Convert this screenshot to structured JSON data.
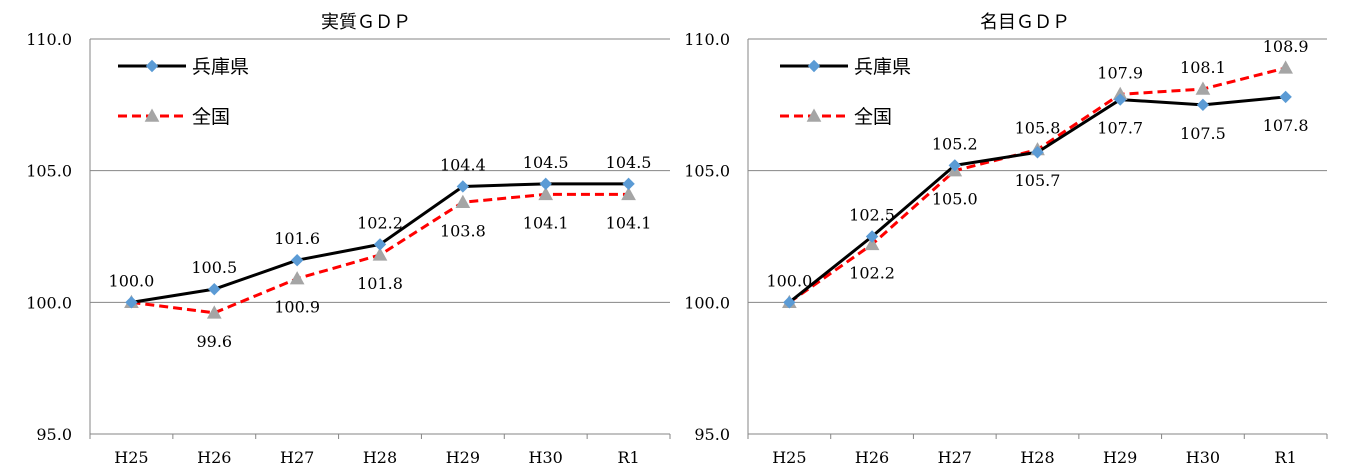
{
  "chart_data": [
    {
      "type": "line",
      "title": "実質ＧＤＰ",
      "categories": [
        "H25",
        "H26",
        "H27",
        "H28",
        "H29",
        "H30",
        "R1"
      ],
      "y_ticks": [
        "95.0",
        "100.0",
        "105.0",
        "110.0"
      ],
      "ylim": [
        95,
        110
      ],
      "grid": "horizontal",
      "legend_position": "top-left",
      "series": [
        {
          "name": "兵庫県",
          "values": [
            100.0,
            100.5,
            101.6,
            102.2,
            104.4,
            104.5,
            104.5
          ],
          "labels": [
            "100.0",
            "100.5",
            "101.6",
            "102.2",
            "104.4",
            "104.5",
            "104.5"
          ],
          "label_position": [
            "above",
            "above",
            "above",
            "above",
            "above",
            "above",
            "above"
          ],
          "color": "#000000",
          "marker_color": "#5B9BD5",
          "marker": "diamond",
          "line_style": "solid"
        },
        {
          "name": "全国",
          "values": [
            100.0,
            99.6,
            100.9,
            101.8,
            103.8,
            104.1,
            104.1
          ],
          "labels": [
            "",
            "99.6",
            "100.9",
            "101.8",
            "103.8",
            "104.1",
            "104.1"
          ],
          "label_position": [
            "below",
            "below",
            "below",
            "below",
            "below",
            "below",
            "below"
          ],
          "color": "#FF0000",
          "marker_color": "#A5A5A5",
          "marker": "triangle",
          "line_style": "dashed"
        }
      ]
    },
    {
      "type": "line",
      "title": "名目ＧＤＰ",
      "categories": [
        "H25",
        "H26",
        "H27",
        "H28",
        "H29",
        "H30",
        "R1"
      ],
      "y_ticks": [
        "95.0",
        "100.0",
        "105.0",
        "110.0"
      ],
      "ylim": [
        95,
        110
      ],
      "grid": "horizontal",
      "legend_position": "top-left",
      "series": [
        {
          "name": "兵庫県",
          "values": [
            100.0,
            102.5,
            105.2,
            105.7,
            107.7,
            107.5,
            107.8
          ],
          "labels": [
            "100.0",
            "102.5",
            "105.2",
            "105.7",
            "107.7",
            "107.5",
            "107.8"
          ],
          "label_position": [
            "above",
            "above",
            "above",
            "below",
            "below",
            "below",
            "below"
          ],
          "color": "#000000",
          "marker_color": "#5B9BD5",
          "marker": "diamond",
          "line_style": "solid"
        },
        {
          "name": "全国",
          "values": [
            100.0,
            102.2,
            105.0,
            105.8,
            107.9,
            108.1,
            108.9
          ],
          "labels": [
            "",
            "102.2",
            "105.0",
            "105.8",
            "107.9",
            "108.1",
            "108.9"
          ],
          "label_position": [
            "below",
            "below",
            "below",
            "above",
            "above",
            "above",
            "above"
          ],
          "color": "#FF0000",
          "marker_color": "#A5A5A5",
          "marker": "triangle",
          "line_style": "dashed"
        }
      ]
    }
  ]
}
